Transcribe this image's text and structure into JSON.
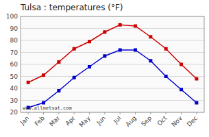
{
  "chart_data": {
    "type": "line",
    "title": "Tulsa : temperatures (°F)",
    "categories": [
      "Jan",
      "Feb",
      "Mar",
      "Apr",
      "May",
      "Jun",
      "Jul",
      "Aug",
      "Sep",
      "Oct",
      "Nov",
      "Dec"
    ],
    "series": [
      {
        "color": "#cc0000",
        "values": [
          45,
          51,
          62,
          73,
          79,
          87,
          93,
          92,
          83,
          73,
          60,
          48
        ]
      },
      {
        "color": "#0000cc",
        "values": [
          24,
          28,
          38,
          49,
          58,
          67,
          72,
          72,
          63,
          50,
          39,
          28
        ]
      }
    ],
    "ylim": [
      20,
      100
    ],
    "yticks": [
      20,
      30,
      40,
      50,
      60,
      70,
      80,
      90,
      100
    ],
    "grid": true,
    "marker": "square",
    "annotations": [
      "www.allmetsat.com"
    ]
  }
}
